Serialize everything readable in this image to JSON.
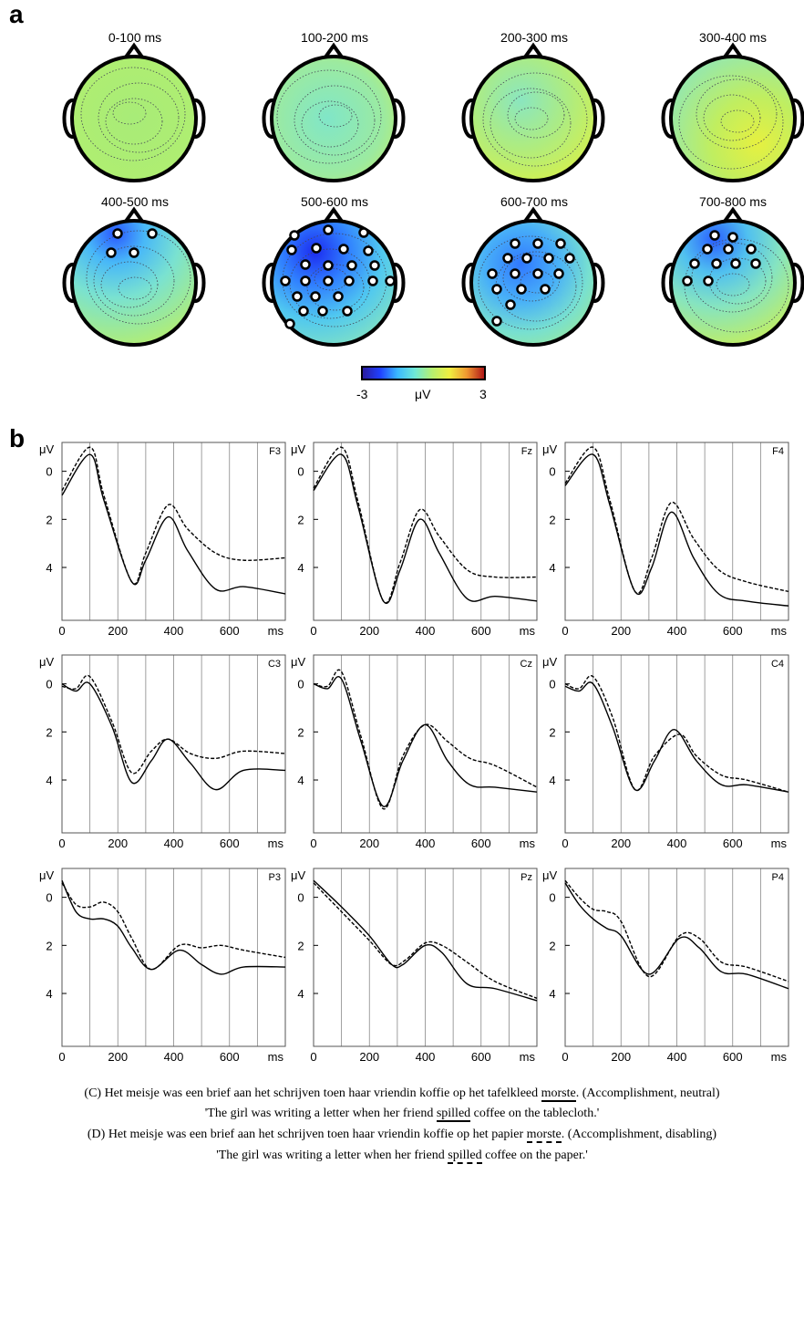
{
  "panel_a_label": "a",
  "panel_b_label": "b",
  "topomaps": [
    {
      "title": "0-100 ms",
      "field": "neutral"
    },
    {
      "title": "100-200 ms",
      "field": "cool"
    },
    {
      "title": "200-300 ms",
      "field": "mixed"
    },
    {
      "title": "300-400 ms",
      "field": "warm"
    },
    {
      "title": "400-500 ms",
      "field": "frontneg"
    },
    {
      "title": "500-600 ms",
      "field": "strongneg"
    },
    {
      "title": "600-700 ms",
      "field": "midneg"
    },
    {
      "title": "700-800 ms",
      "field": "frontneg2"
    }
  ],
  "colorbar": {
    "min_label": "-3",
    "unit_label": "μV",
    "max_label": "3",
    "colors": [
      "#2a1ca0",
      "#2040ff",
      "#3ab8ff",
      "#6ee8d8",
      "#b6f070",
      "#f0f040",
      "#f09830",
      "#b01818"
    ]
  },
  "chart_data": {
    "type": "line",
    "ylabel": "μV",
    "xlabel": "ms",
    "x_ticks": [
      0,
      200,
      400,
      600
    ],
    "y_ticks": [
      0,
      2,
      4
    ],
    "xlim": [
      0,
      800
    ],
    "ylim_inverted": [
      -1.2,
      6.2
    ],
    "series_styles": [
      "solid",
      "dashed"
    ],
    "panels": [
      {
        "electrode": "F3",
        "solid": [
          [
            0,
            1.0
          ],
          [
            100,
            -0.7
          ],
          [
            150,
            1.2
          ],
          [
            250,
            4.6
          ],
          [
            300,
            3.7
          ],
          [
            380,
            1.9
          ],
          [
            450,
            3.3
          ],
          [
            550,
            4.9
          ],
          [
            650,
            4.8
          ],
          [
            800,
            5.1
          ]
        ],
        "dashed": [
          [
            0,
            0.8
          ],
          [
            100,
            -1.0
          ],
          [
            150,
            1.0
          ],
          [
            250,
            4.6
          ],
          [
            300,
            3.4
          ],
          [
            380,
            1.4
          ],
          [
            450,
            2.4
          ],
          [
            550,
            3.4
          ],
          [
            650,
            3.7
          ],
          [
            800,
            3.6
          ]
        ]
      },
      {
        "electrode": "Fz",
        "solid": [
          [
            0,
            0.8
          ],
          [
            100,
            -0.7
          ],
          [
            160,
            1.5
          ],
          [
            250,
            5.4
          ],
          [
            310,
            4.1
          ],
          [
            380,
            2.0
          ],
          [
            450,
            3.4
          ],
          [
            550,
            5.3
          ],
          [
            650,
            5.2
          ],
          [
            800,
            5.4
          ]
        ],
        "dashed": [
          [
            0,
            0.7
          ],
          [
            100,
            -1.0
          ],
          [
            160,
            1.3
          ],
          [
            250,
            5.4
          ],
          [
            310,
            3.8
          ],
          [
            380,
            1.6
          ],
          [
            450,
            2.7
          ],
          [
            550,
            4.1
          ],
          [
            650,
            4.4
          ],
          [
            800,
            4.4
          ]
        ]
      },
      {
        "electrode": "F4",
        "solid": [
          [
            0,
            0.6
          ],
          [
            100,
            -0.7
          ],
          [
            160,
            1.4
          ],
          [
            250,
            5.0
          ],
          [
            310,
            4.0
          ],
          [
            380,
            1.7
          ],
          [
            460,
            3.6
          ],
          [
            550,
            5.1
          ],
          [
            650,
            5.4
          ],
          [
            800,
            5.6
          ]
        ],
        "dashed": [
          [
            0,
            0.5
          ],
          [
            100,
            -1.0
          ],
          [
            160,
            1.2
          ],
          [
            250,
            5.0
          ],
          [
            310,
            3.6
          ],
          [
            380,
            1.3
          ],
          [
            460,
            2.8
          ],
          [
            550,
            4.1
          ],
          [
            650,
            4.6
          ],
          [
            800,
            5.0
          ]
        ]
      },
      {
        "electrode": "C3",
        "solid": [
          [
            0,
            0.0
          ],
          [
            50,
            0.3
          ],
          [
            100,
            0.0
          ],
          [
            180,
            1.8
          ],
          [
            250,
            4.1
          ],
          [
            320,
            3.2
          ],
          [
            380,
            2.3
          ],
          [
            460,
            3.3
          ],
          [
            550,
            4.4
          ],
          [
            650,
            3.6
          ],
          [
            800,
            3.6
          ]
        ],
        "dashed": [
          [
            0,
            0.1
          ],
          [
            50,
            0.2
          ],
          [
            100,
            -0.3
          ],
          [
            180,
            1.6
          ],
          [
            250,
            3.7
          ],
          [
            320,
            2.8
          ],
          [
            380,
            2.3
          ],
          [
            460,
            2.9
          ],
          [
            550,
            3.1
          ],
          [
            650,
            2.8
          ],
          [
            800,
            2.9
          ]
        ]
      },
      {
        "electrode": "Cz",
        "solid": [
          [
            0,
            0.0
          ],
          [
            50,
            0.2
          ],
          [
            100,
            -0.2
          ],
          [
            170,
            2.4
          ],
          [
            250,
            5.1
          ],
          [
            320,
            3.2
          ],
          [
            400,
            1.7
          ],
          [
            480,
            3.2
          ],
          [
            560,
            4.2
          ],
          [
            650,
            4.3
          ],
          [
            800,
            4.5
          ]
        ],
        "dashed": [
          [
            0,
            0.0
          ],
          [
            50,
            0.1
          ],
          [
            100,
            -0.5
          ],
          [
            170,
            2.2
          ],
          [
            250,
            5.2
          ],
          [
            320,
            3.0
          ],
          [
            400,
            1.7
          ],
          [
            480,
            2.4
          ],
          [
            560,
            3.1
          ],
          [
            650,
            3.4
          ],
          [
            800,
            4.3
          ]
        ]
      },
      {
        "electrode": "C4",
        "solid": [
          [
            0,
            0.1
          ],
          [
            50,
            0.3
          ],
          [
            100,
            0.0
          ],
          [
            170,
            1.8
          ],
          [
            250,
            4.4
          ],
          [
            320,
            3.2
          ],
          [
            390,
            1.9
          ],
          [
            470,
            3.2
          ],
          [
            560,
            4.2
          ],
          [
            650,
            4.2
          ],
          [
            800,
            4.5
          ]
        ],
        "dashed": [
          [
            0,
            0.0
          ],
          [
            50,
            0.2
          ],
          [
            100,
            -0.3
          ],
          [
            170,
            1.4
          ],
          [
            250,
            4.4
          ],
          [
            320,
            3.0
          ],
          [
            410,
            2.1
          ],
          [
            470,
            3.0
          ],
          [
            560,
            3.8
          ],
          [
            650,
            4.0
          ],
          [
            800,
            4.5
          ]
        ]
      },
      {
        "electrode": "P3",
        "solid": [
          [
            0,
            -0.7
          ],
          [
            50,
            0.6
          ],
          [
            100,
            0.9
          ],
          [
            150,
            0.9
          ],
          [
            200,
            1.2
          ],
          [
            250,
            2.1
          ],
          [
            320,
            3.0
          ],
          [
            420,
            2.2
          ],
          [
            500,
            2.8
          ],
          [
            570,
            3.2
          ],
          [
            650,
            2.9
          ],
          [
            800,
            2.9
          ]
        ],
        "dashed": [
          [
            0,
            -0.6
          ],
          [
            50,
            0.3
          ],
          [
            100,
            0.4
          ],
          [
            150,
            0.2
          ],
          [
            200,
            0.6
          ],
          [
            250,
            1.7
          ],
          [
            320,
            3.0
          ],
          [
            420,
            2.0
          ],
          [
            500,
            2.1
          ],
          [
            570,
            2.0
          ],
          [
            650,
            2.2
          ],
          [
            800,
            2.5
          ]
        ]
      },
      {
        "electrode": "Pz",
        "solid": [
          [
            0,
            -0.7
          ],
          [
            100,
            0.4
          ],
          [
            200,
            1.6
          ],
          [
            280,
            2.8
          ],
          [
            320,
            2.8
          ],
          [
            400,
            2.0
          ],
          [
            460,
            2.3
          ],
          [
            550,
            3.6
          ],
          [
            650,
            3.8
          ],
          [
            800,
            4.3
          ]
        ],
        "dashed": [
          [
            0,
            -0.6
          ],
          [
            100,
            0.6
          ],
          [
            200,
            1.8
          ],
          [
            280,
            2.8
          ],
          [
            330,
            2.6
          ],
          [
            400,
            1.9
          ],
          [
            460,
            2.0
          ],
          [
            550,
            2.7
          ],
          [
            650,
            3.5
          ],
          [
            800,
            4.2
          ]
        ]
      },
      {
        "electrode": "P4",
        "solid": [
          [
            0,
            -0.6
          ],
          [
            50,
            0.3
          ],
          [
            100,
            0.9
          ],
          [
            150,
            1.3
          ],
          [
            200,
            1.6
          ],
          [
            300,
            3.2
          ],
          [
            410,
            1.7
          ],
          [
            480,
            2.1
          ],
          [
            560,
            3.1
          ],
          [
            650,
            3.2
          ],
          [
            800,
            3.8
          ]
        ],
        "dashed": [
          [
            0,
            -0.7
          ],
          [
            50,
            0.0
          ],
          [
            100,
            0.5
          ],
          [
            150,
            0.6
          ],
          [
            200,
            1.0
          ],
          [
            300,
            3.3
          ],
          [
            410,
            1.6
          ],
          [
            480,
            1.7
          ],
          [
            560,
            2.7
          ],
          [
            650,
            2.9
          ],
          [
            800,
            3.5
          ]
        ]
      }
    ]
  },
  "caption": {
    "line1_prefix": "(C) Het meisje was een brief aan het schrijven toen haar vriendin koffie op het tafelkleed ",
    "line1_verb": "morste",
    "line1_suffix": ". (Accomplishment, neutral)",
    "line2_prefix": "'The girl was writing a letter when her friend ",
    "line2_verb": "spilled",
    "line2_suffix": " coffee on the tablecloth.'",
    "line3_prefix": "(D) Het meisje was een brief aan het schrijven toen haar vriendin koffie op het papier ",
    "line3_verb": "morste",
    "line3_suffix": ". (Accomplishment, disabling)",
    "line4_prefix": "'The girl was writing a letter when her friend ",
    "line4_verb": "spilled",
    "line4_suffix": " coffee on the paper.'"
  }
}
